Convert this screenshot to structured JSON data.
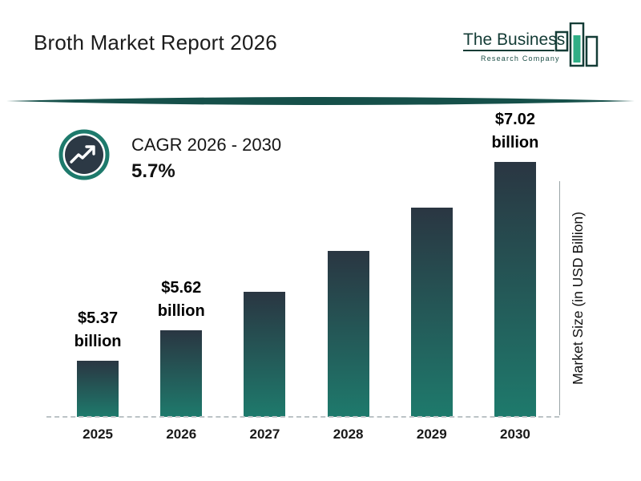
{
  "header": {
    "title": "Broth Market Report 2026",
    "logo": {
      "line1": "The Business",
      "line2": "Research Company"
    }
  },
  "cagr": {
    "icon": "trending-up-icon",
    "label": "CAGR 2026 - 2030",
    "value": "5.7%"
  },
  "chart_data": {
    "type": "bar",
    "title": "Broth Market Report 2026",
    "categories": [
      "2025",
      "2026",
      "2027",
      "2028",
      "2029",
      "2030"
    ],
    "values": [
      5.37,
      5.62,
      5.94,
      6.28,
      6.64,
      7.02
    ],
    "labeled_bars": [
      {
        "year": "2025",
        "line1": "$5.37",
        "line2": "billion"
      },
      {
        "year": "2026",
        "line1": "$5.62",
        "line2": "billion"
      },
      {
        "year": "2030",
        "line1": "$7.02",
        "line2": "billion"
      }
    ],
    "xlabel": "",
    "ylabel": "Market Size (in USD Billion)",
    "ylim": [
      4.9,
      7.1
    ],
    "grid": false,
    "legend": false,
    "bar_gradient": {
      "top": "#2a3642",
      "bottom": "#1e7a6c"
    }
  },
  "colors": {
    "accent_teal": "#1e7a6c",
    "dark_navy": "#2c3945",
    "divider": "#16504a",
    "logo_green": "#2fae85",
    "logo_dark": "#143c36",
    "text": "#1a1a1a"
  }
}
